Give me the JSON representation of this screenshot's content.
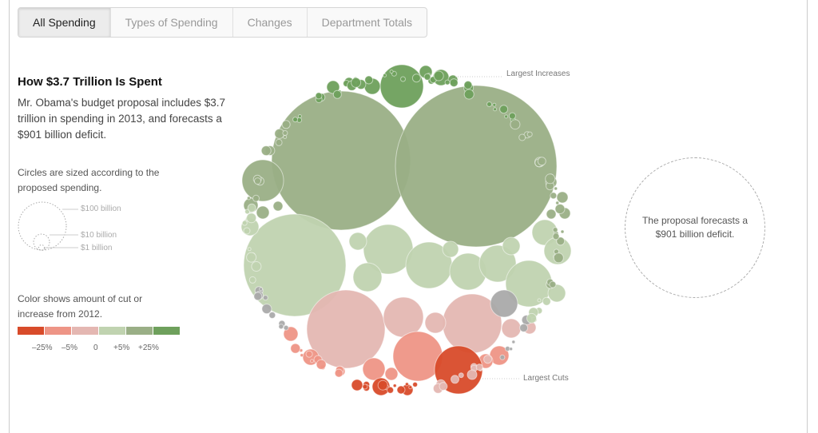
{
  "tabs": [
    {
      "label": "All Spending",
      "active": true
    },
    {
      "label": "Types of Spending",
      "active": false
    },
    {
      "label": "Changes",
      "active": false
    },
    {
      "label": "Department Totals",
      "active": false
    }
  ],
  "sidebar": {
    "title": "How $3.7 Trillion Is Spent",
    "intro": "Mr. Obama's budget proposal includes $3.7 trillion in spending in 2013, and forecasts a $901 billion deficit.",
    "size_note": "Circles are sized according to the proposed spending.",
    "size_key": [
      "$100 billion",
      "$10 billion",
      "$1 billion"
    ],
    "color_note": "Color shows amount of cut or increase from 2012.",
    "color_scale": [
      "#d84b2a",
      "#ee9586",
      "#e4b7b2",
      "#c0d3b0",
      "#9aaf86",
      "#6ea05c"
    ],
    "color_labels": [
      "–25%",
      "–5%",
      "0",
      "+5%",
      "+25%"
    ]
  },
  "chart_data": {
    "type": "bubble",
    "title": "How $3.7 Trillion Is Spent",
    "size_legend": [
      "$100 billion",
      "$10 billion",
      "$1 billion"
    ],
    "color_legend": [
      "–25%",
      "–5%",
      "0",
      "+5%",
      "+25%"
    ],
    "neutral_color": "#aaaaaa",
    "annotations": [
      "Largest Increases",
      "Largest Cuts"
    ]
  },
  "deficit": {
    "text": "The proposal forecasts a $901 billion deficit."
  }
}
